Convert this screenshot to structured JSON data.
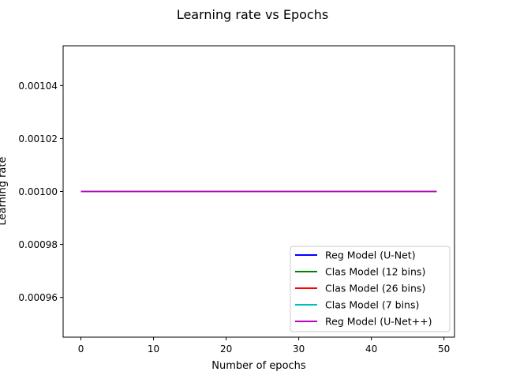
{
  "chart_data": {
    "type": "line",
    "title": "Learning rate vs Epochs",
    "xlabel": "Number of epochs",
    "ylabel": "Learning rate",
    "xlim": [
      -2.45,
      51.45
    ],
    "ylim": [
      0.000945,
      0.001055
    ],
    "xticks": [
      0,
      10,
      20,
      30,
      40,
      50
    ],
    "xtick_labels": [
      "0",
      "10",
      "20",
      "30",
      "40",
      "50"
    ],
    "yticks": [
      0.00096,
      0.00098,
      0.001,
      0.00102,
      0.00104
    ],
    "ytick_labels": [
      "0.00096",
      "0.00098",
      "0.00100",
      "0.00102",
      "0.00104"
    ],
    "grid": false,
    "legend_position": "lower-right",
    "series": [
      {
        "name": "Reg Model (U-Net)",
        "color": "#0000ff",
        "x": [
          0,
          49
        ],
        "y": [
          0.001,
          0.001
        ]
      },
      {
        "name": "Clas Model (12 bins)",
        "color": "#008000",
        "x": [
          0,
          49
        ],
        "y": [
          0.001,
          0.001
        ]
      },
      {
        "name": "Clas Model (26 bins)",
        "color": "#ff0000",
        "x": [
          0,
          49
        ],
        "y": [
          0.001,
          0.001
        ]
      },
      {
        "name": "Clas Model (7 bins)",
        "color": "#00bfbf",
        "x": [
          0,
          49
        ],
        "y": [
          0.001,
          0.001
        ]
      },
      {
        "name": "Reg Model (U-Net++)",
        "color": "#bf00bf",
        "x": [
          0,
          49
        ],
        "y": [
          0.001,
          0.001
        ]
      }
    ]
  }
}
